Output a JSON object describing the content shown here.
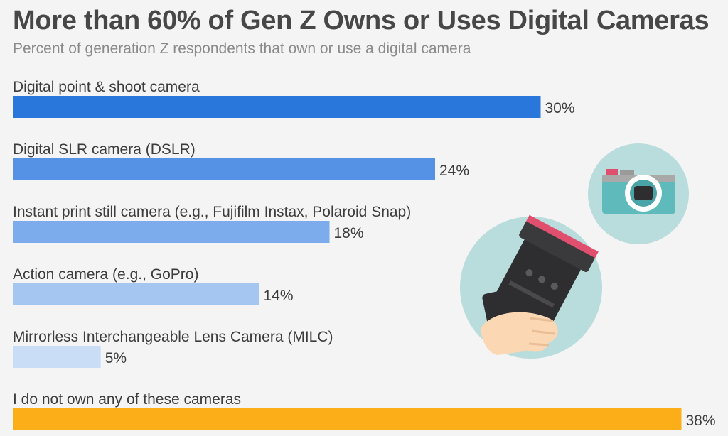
{
  "chart_data": {
    "type": "bar",
    "orientation": "horizontal",
    "title": "More than 60% of Gen Z Owns or Uses Digital Cameras",
    "subtitle": "Percent of generation Z respondents that own or use a digital camera",
    "unit": "%",
    "xlim": [
      0,
      40
    ],
    "grid": false,
    "legend": "none",
    "categories": [
      "Digital point & shoot camera",
      "Digital SLR camera (DSLR)",
      "Instant print still camera (e.g., Fujifilm Instax, Polaroid Snap)",
      "Action camera (e.g., GoPro)",
      "Mirrorless Interchangeable Lens Camera (MILC)",
      "I do not own any of these cameras"
    ],
    "values": [
      30,
      24,
      18,
      14,
      5,
      38
    ],
    "value_labels": [
      "30%",
      "24%",
      "18%",
      "14%",
      "5%",
      "38%"
    ],
    "colors": [
      "#2a77dc",
      "#5592e5",
      "#7dacec",
      "#a6c6f2",
      "#c9ddf7",
      "#fbae17"
    ]
  },
  "illustration": {
    "icons": [
      "camera-icon",
      "camera-lens-in-hand-icon"
    ],
    "colors": {
      "circle": "#b9dcdc",
      "camera_body": "#5fbbbb",
      "lens_ring": "#e0506e",
      "lens_body": "#2e2e30",
      "skin": "#fbd7b4"
    }
  }
}
